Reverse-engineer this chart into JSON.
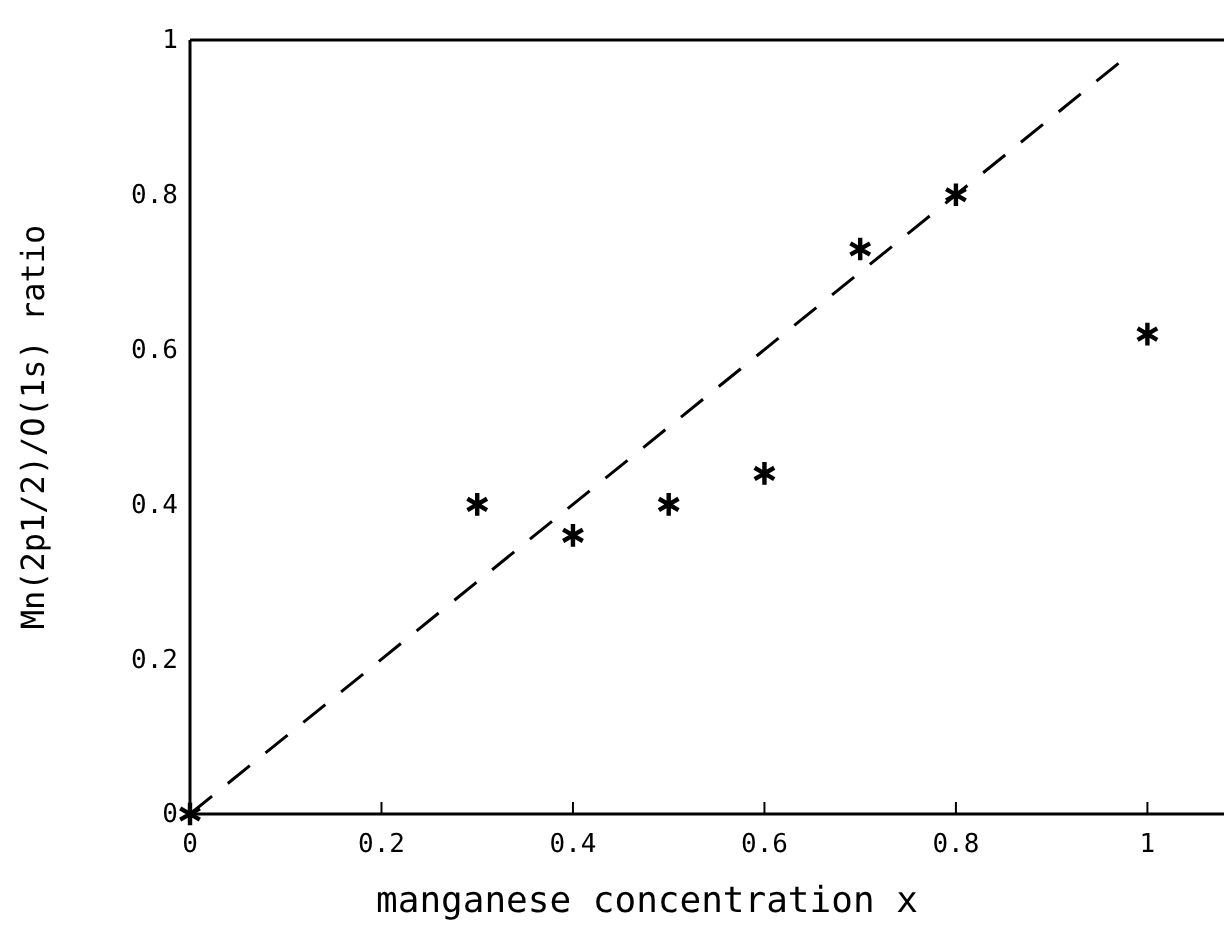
{
  "chart_data": {
    "type": "scatter",
    "xlabel": "manganese concentration x",
    "ylabel": "Mn(2p1/2)/O(1s) ratio",
    "series": [
      {
        "color": "#000000",
        "marker": "cross",
        "x": [
          0,
          0.3,
          0.4,
          0.5,
          0.6,
          0.7,
          0.8,
          1.0
        ],
        "values": [
          0,
          0.4,
          0.36,
          0.4,
          0.44,
          0.73,
          0.8,
          0.62
        ]
      },
      {
        "type": "line",
        "color": "#000000",
        "line_style": "dashed",
        "marker": "none",
        "x": [
          0,
          0.97
        ],
        "values": [
          0,
          0.97
        ]
      }
    ],
    "xlim": [
      0,
      1.08
    ],
    "xticks": [
      0,
      0.2,
      0.4,
      0.6,
      0.8,
      1
    ],
    "ylim": [
      0,
      1
    ],
    "yticks": [
      0,
      0.2,
      0.4,
      0.6,
      0.8,
      1
    ],
    "grid": false
  }
}
